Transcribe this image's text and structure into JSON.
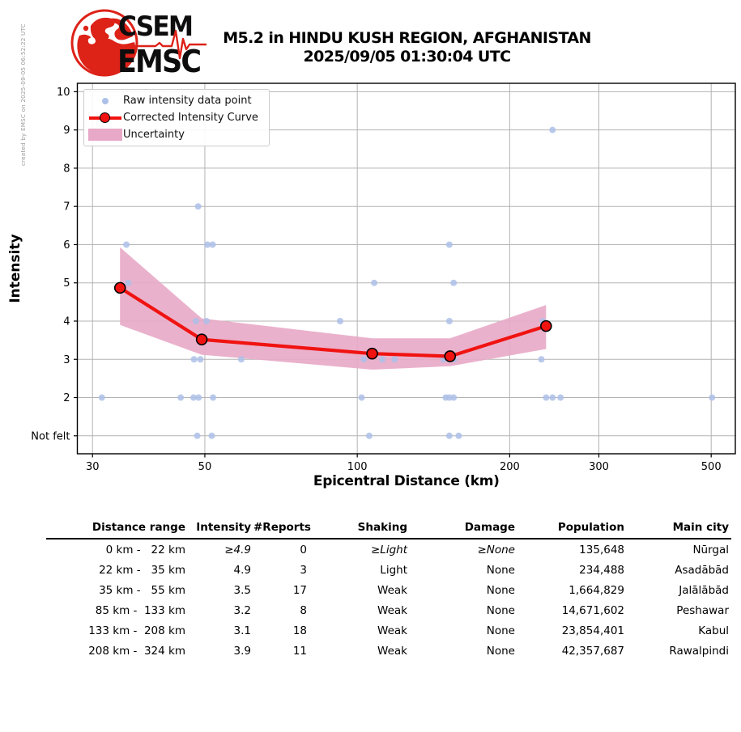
{
  "created_by": "created by EMSC on 2025-09-05 06:52:22 UTC",
  "logo": {
    "word_top": "CSEM",
    "word_bottom": "EMSC"
  },
  "header": {
    "title_line1": "M5.2 in HINDU KUSH REGION, AFGHANISTAN",
    "title_line2": "2025/09/05 01:30:04 UTC"
  },
  "chart_data": {
    "type": "scatter",
    "title": "",
    "xlabel": "Epicentral Distance (km)",
    "ylabel": "Intensity",
    "x_scale": "log",
    "xlim": [
      28,
      558
    ],
    "ylim": [
      0.53,
      10.22
    ],
    "x_ticks": [
      30,
      50,
      100,
      200,
      300,
      500
    ],
    "y_ticks": [
      {
        "v": 1,
        "label": "Not felt"
      },
      {
        "v": 2,
        "label": "2"
      },
      {
        "v": 3,
        "label": "3"
      },
      {
        "v": 4,
        "label": "4"
      },
      {
        "v": 5,
        "label": "5"
      },
      {
        "v": 6,
        "label": "6"
      },
      {
        "v": 7,
        "label": "7"
      },
      {
        "v": 8,
        "label": "8"
      },
      {
        "v": 9,
        "label": "9"
      },
      {
        "v": 10,
        "label": "10"
      }
    ],
    "grid": true,
    "legend_position": "upper left",
    "legend": {
      "raw": "Raw intensity data point",
      "curve": "Corrected Intensity Curve",
      "band": "Uncertainty"
    },
    "raw_points": [
      [
        31.3,
        2
      ],
      [
        35,
        6
      ],
      [
        35.3,
        5
      ],
      [
        44.8,
        2
      ],
      [
        47.5,
        2
      ],
      [
        47.6,
        3
      ],
      [
        48,
        4
      ],
      [
        48.3,
        1
      ],
      [
        48.5,
        7
      ],
      [
        48.6,
        2
      ],
      [
        49,
        3
      ],
      [
        50.4,
        4
      ],
      [
        50.6,
        6
      ],
      [
        51.6,
        1
      ],
      [
        51.8,
        6
      ],
      [
        51.9,
        2
      ],
      [
        59,
        3
      ],
      [
        92.5,
        4
      ],
      [
        102,
        2
      ],
      [
        103,
        3
      ],
      [
        105.6,
        1
      ],
      [
        108,
        5
      ],
      [
        112,
        3
      ],
      [
        118.5,
        3
      ],
      [
        148,
        3
      ],
      [
        149.5,
        2
      ],
      [
        152,
        6
      ],
      [
        152,
        4
      ],
      [
        152,
        2
      ],
      [
        152,
        1
      ],
      [
        155,
        5
      ],
      [
        155,
        2
      ],
      [
        155.4,
        3
      ],
      [
        158.6,
        1
      ],
      [
        231,
        3
      ],
      [
        232.5,
        4
      ],
      [
        236,
        2
      ],
      [
        243,
        9
      ],
      [
        243,
        2
      ],
      [
        252,
        2
      ],
      [
        502,
        2
      ]
    ],
    "corrected_curve": [
      [
        34,
        4.87
      ],
      [
        49.3,
        3.52
      ],
      [
        107,
        3.15
      ],
      [
        152.5,
        3.08
      ],
      [
        236,
        3.87
      ]
    ],
    "uncertainty_band": {
      "upper": [
        [
          34,
          5.93
        ],
        [
          49.3,
          4.07
        ],
        [
          107,
          3.55
        ],
        [
          152.5,
          3.55
        ],
        [
          236,
          4.42
        ]
      ],
      "lower": [
        [
          34,
          3.9
        ],
        [
          49.3,
          3.12
        ],
        [
          107,
          2.73
        ],
        [
          152.5,
          2.82
        ],
        [
          236,
          3.27
        ]
      ]
    },
    "colors": {
      "raw_point": "#adc0e8",
      "curve": "#f01311",
      "curve_marker_edge": "#000000",
      "band": "#e8a8c7",
      "grid": "#b3b3b3",
      "axis": "#000000",
      "created_by_text": "#9a9a9a",
      "logo_red": "#dd2218"
    }
  },
  "table": {
    "headers": [
      "Distance range",
      "Intensity",
      "#Reports",
      "Shaking",
      "Damage",
      "Population",
      "Main city"
    ],
    "rows": [
      [
        "0 km -   22 km",
        "≥4.9",
        "0",
        "≥Light",
        "≥None",
        "135,648",
        "Nūrgal"
      ],
      [
        "22 km -   35 km",
        "4.9",
        "3",
        "Light",
        "None",
        "234,488",
        "Asadābād"
      ],
      [
        "35 km -   55 km",
        "3.5",
        "17",
        "Weak",
        "None",
        "1,664,829",
        "Jalālābād"
      ],
      [
        "85 km -  133 km",
        "3.2",
        "8",
        "Weak",
        "None",
        "14,671,602",
        "Peshawar"
      ],
      [
        "133 km -  208 km",
        "3.1",
        "18",
        "Weak",
        "None",
        "23,854,401",
        "Kabul"
      ],
      [
        "208 km -  324 km",
        "3.9",
        "11",
        "Weak",
        "None",
        "42,357,687",
        "Rawalpindi"
      ]
    ]
  }
}
